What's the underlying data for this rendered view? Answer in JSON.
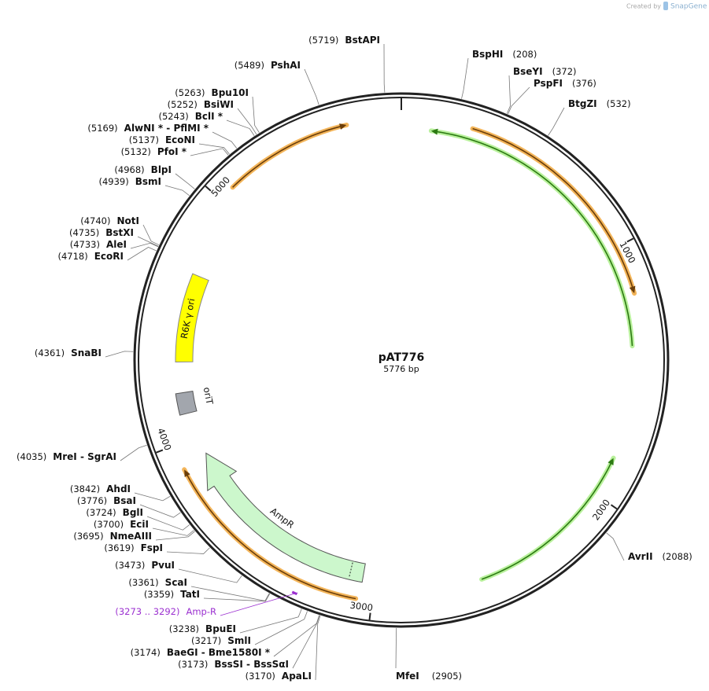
{
  "header": {
    "credit": "Created by",
    "brand": "SnapGene"
  },
  "plasmid": {
    "name": "pAT776",
    "length": {
      "value": 5776,
      "label": "5776 bp"
    },
    "ticks": [
      1000,
      2000,
      3000,
      4000,
      5000
    ]
  },
  "features": [
    {
      "label": "R6K γ ori"
    },
    {
      "label": "oriT"
    },
    {
      "label": "AmpR"
    }
  ],
  "sites": [
    {
      "name": "BstAPI",
      "position": 5719,
      "position_label": "(5719)"
    },
    {
      "name": "PshAI",
      "position": 5489,
      "position_label": "(5489)"
    },
    {
      "name": "Bpu10I",
      "position": 5263,
      "position_label": "(5263)"
    },
    {
      "name": "BsiWI",
      "position": 5252,
      "position_label": "(5252)"
    },
    {
      "name": "BclI *",
      "position": 5243,
      "position_label": "(5243)"
    },
    {
      "name": "AlwNI * - PflMI *",
      "position": 5169,
      "position_label": "(5169)"
    },
    {
      "name": "EcoNI",
      "position": 5137,
      "position_label": "(5137)"
    },
    {
      "name": "PfoI *",
      "position": 5132,
      "position_label": "(5132)"
    },
    {
      "name": "BlpI",
      "position": 4968,
      "position_label": "(4968)"
    },
    {
      "name": "BsmI",
      "position": 4939,
      "position_label": "(4939)"
    },
    {
      "name": "NotI",
      "position": 4740,
      "position_label": "(4740)"
    },
    {
      "name": "BstXI",
      "position": 4735,
      "position_label": "(4735)"
    },
    {
      "name": "AleI",
      "position": 4733,
      "position_label": "(4733)"
    },
    {
      "name": "EcoRI",
      "position": 4718,
      "position_label": "(4718)"
    },
    {
      "name": "SnaBI",
      "position": 4361,
      "position_label": "(4361)"
    },
    {
      "name": "MreI - SgrAI",
      "position": 4035,
      "position_label": "(4035)"
    },
    {
      "name": "AhdI",
      "position": 3842,
      "position_label": "(3842)"
    },
    {
      "name": "BsaI",
      "position": 3776,
      "position_label": "(3776)"
    },
    {
      "name": "BglI",
      "position": 3724,
      "position_label": "(3724)"
    },
    {
      "name": "EciI",
      "position": 3700,
      "position_label": "(3700)"
    },
    {
      "name": "NmeAIII",
      "position": 3695,
      "position_label": "(3695)"
    },
    {
      "name": "FspI",
      "position": 3619,
      "position_label": "(3619)"
    },
    {
      "name": "PvuI",
      "position": 3473,
      "position_label": "(3473)"
    },
    {
      "name": "ScaI",
      "position": 3361,
      "position_label": "(3361)"
    },
    {
      "name": "TatI",
      "position": 3359,
      "position_label": "(3359)"
    },
    {
      "name": "Amp-R",
      "position": 3273,
      "end": 3292,
      "position_label": "(3273 .. 3292)",
      "color": "#9b30d0"
    },
    {
      "name": "BpuEI",
      "position": 3238,
      "position_label": "(3238)"
    },
    {
      "name": "SmlI",
      "position": 3217,
      "position_label": "(3217)"
    },
    {
      "name": "BaeGI - Bme1580I *",
      "position": 3174,
      "position_label": "(3174)"
    },
    {
      "name": "BssSI - BssSαI",
      "position": 3173,
      "position_label": "(3173)"
    },
    {
      "name": "ApaLI",
      "position": 3170,
      "position_label": "(3170)"
    },
    {
      "name": "MfeI",
      "position": 2905,
      "position_label": "(2905)"
    },
    {
      "name": "AvrII",
      "position": 2088,
      "position_label": "(2088)"
    },
    {
      "name": "BtgZI",
      "position": 532,
      "position_label": "(532)"
    },
    {
      "name": "PspFI",
      "position": 376,
      "position_label": "(376)"
    },
    {
      "name": "BseYI",
      "position": 372,
      "position_label": "(372)"
    },
    {
      "name": "BspHI",
      "position": 208,
      "position_label": "(208)"
    }
  ]
}
